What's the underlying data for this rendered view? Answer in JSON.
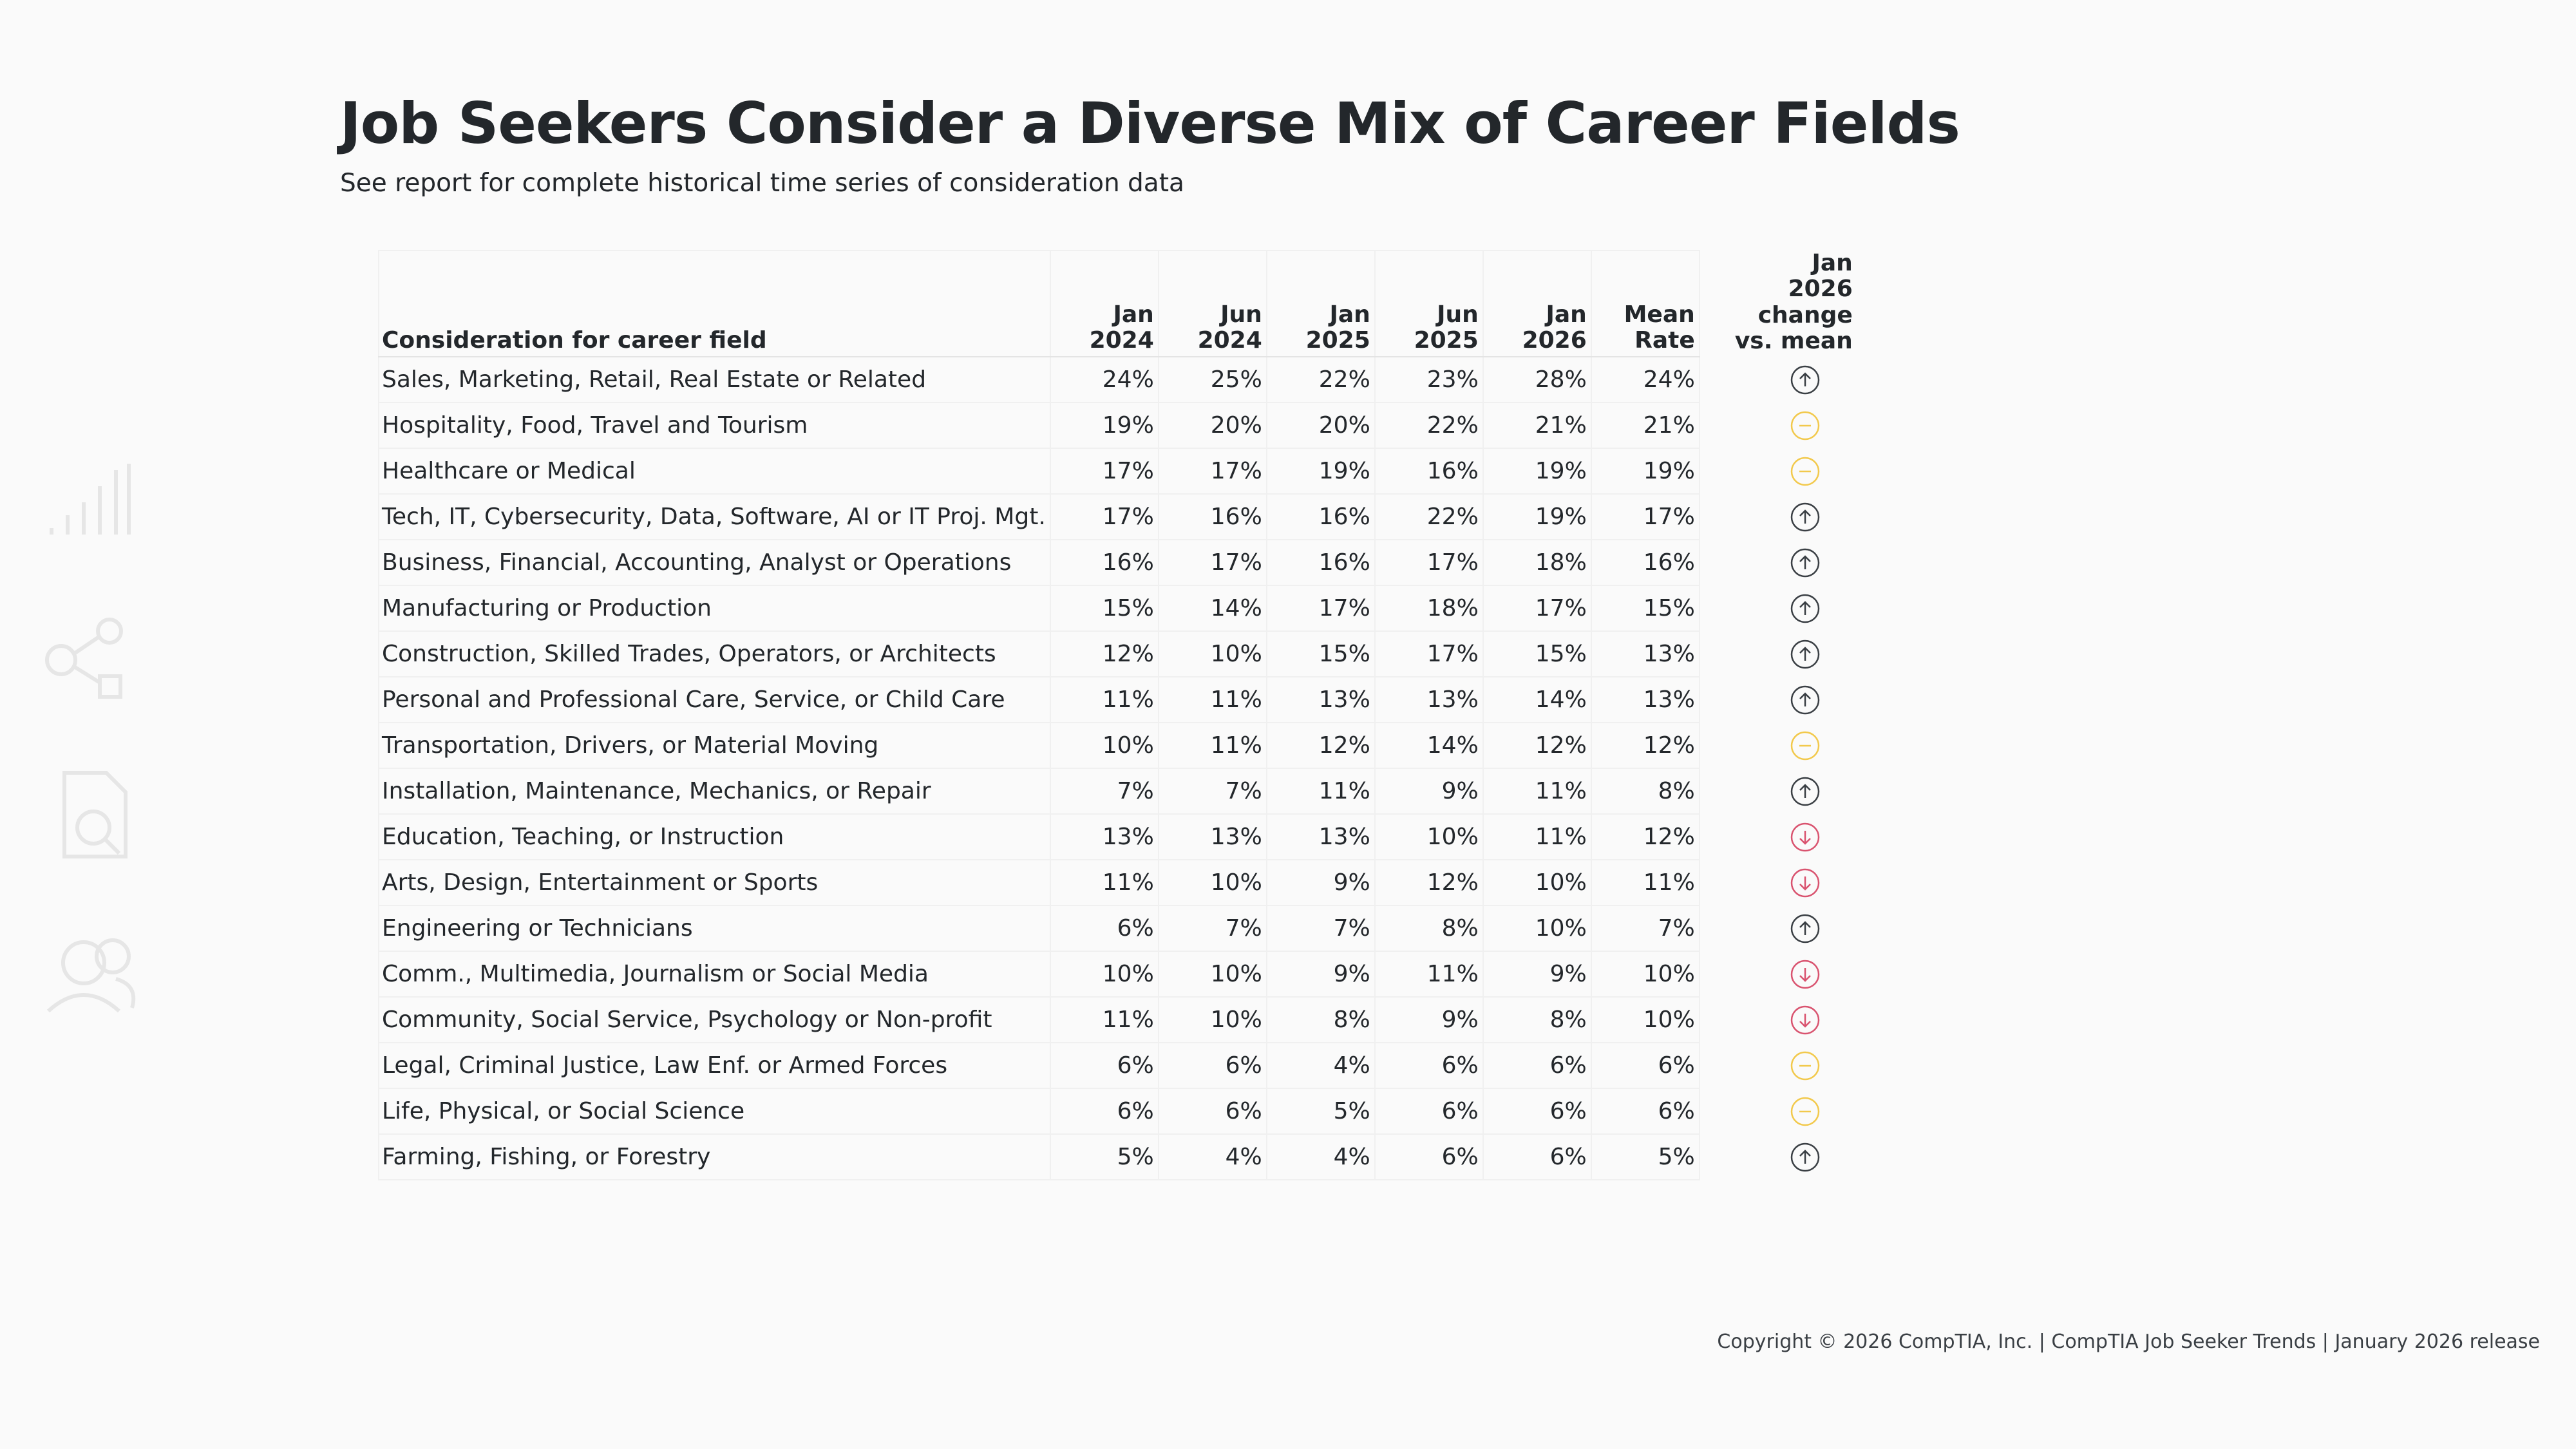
{
  "header": {
    "title": "Job Seekers Consider a Diverse Mix of Career Fields",
    "subtitle": "See report for complete historical time series of consideration data"
  },
  "table": {
    "columns": [
      "Consideration for career field",
      "Jan\n2024",
      "Jun\n2024",
      "Jan\n2025",
      "Jun\n2025",
      "Jan\n2026",
      "Mean\nRate",
      "Jan\n2026\nchange\nvs. mean"
    ],
    "rows": [
      [
        "Sales, Marketing, Retail, Real Estate or Related",
        "24%",
        "25%",
        "22%",
        "23%",
        "28%",
        "24%"
      ],
      [
        "Hospitality, Food, Travel and Tourism",
        "19%",
        "20%",
        "20%",
        "22%",
        "21%",
        "21%"
      ],
      [
        "Healthcare or Medical",
        "17%",
        "17%",
        "19%",
        "16%",
        "19%",
        "19%"
      ],
      [
        "Tech, IT, Cybersecurity, Data, Software, AI or IT Proj. Mgt.",
        "17%",
        "16%",
        "16%",
        "22%",
        "19%",
        "17%"
      ],
      [
        "Business, Financial, Accounting, Analyst or Operations",
        "16%",
        "17%",
        "16%",
        "17%",
        "18%",
        "16%"
      ],
      [
        "Manufacturing or Production",
        "15%",
        "14%",
        "17%",
        "18%",
        "17%",
        "15%"
      ],
      [
        "Construction, Skilled Trades, Operators, or Architects",
        "12%",
        "10%",
        "15%",
        "17%",
        "15%",
        "13%"
      ],
      [
        "Personal and Professional Care, Service, or Child Care",
        "11%",
        "11%",
        "13%",
        "13%",
        "14%",
        "13%"
      ],
      [
        "Transportation, Drivers, or Material Moving",
        "10%",
        "11%",
        "12%",
        "14%",
        "12%",
        "12%"
      ],
      [
        "Installation, Maintenance, Mechanics, or Repair",
        "7%",
        "7%",
        "11%",
        "9%",
        "11%",
        "8%"
      ],
      [
        "Education, Teaching, or Instruction",
        "13%",
        "13%",
        "13%",
        "10%",
        "11%",
        "12%"
      ],
      [
        "Arts, Design, Entertainment or Sports",
        "11%",
        "10%",
        "9%",
        "12%",
        "10%",
        "11%"
      ],
      [
        "Engineering or Technicians",
        "6%",
        "7%",
        "7%",
        "8%",
        "10%",
        "7%"
      ],
      [
        "Comm., Multimedia, Journalism or Social Media",
        "10%",
        "10%",
        "9%",
        "11%",
        "9%",
        "10%"
      ],
      [
        "Community, Social Service, Psychology or Non-profit",
        "11%",
        "10%",
        "8%",
        "9%",
        "8%",
        "10%"
      ],
      [
        "Legal, Criminal Justice, Law Enf. or Armed Forces",
        "6%",
        "6%",
        "4%",
        "6%",
        "6%",
        "6%"
      ],
      [
        "Life, Physical, or Social Science",
        "6%",
        "6%",
        "5%",
        "6%",
        "6%",
        "6%"
      ],
      [
        "Farming, Fishing, or Forestry",
        "5%",
        "4%",
        "4%",
        "6%",
        "6%",
        "5%"
      ]
    ],
    "trend": [
      "up",
      "flat",
      "flat",
      "up",
      "up",
      "up",
      "up",
      "up",
      "flat",
      "up",
      "down",
      "down",
      "up",
      "down",
      "down",
      "flat",
      "flat",
      "up"
    ]
  },
  "footer": "Copyright © 2026 CompTIA, Inc. | CompTIA Job Seeker Trends | January 2026 release"
}
